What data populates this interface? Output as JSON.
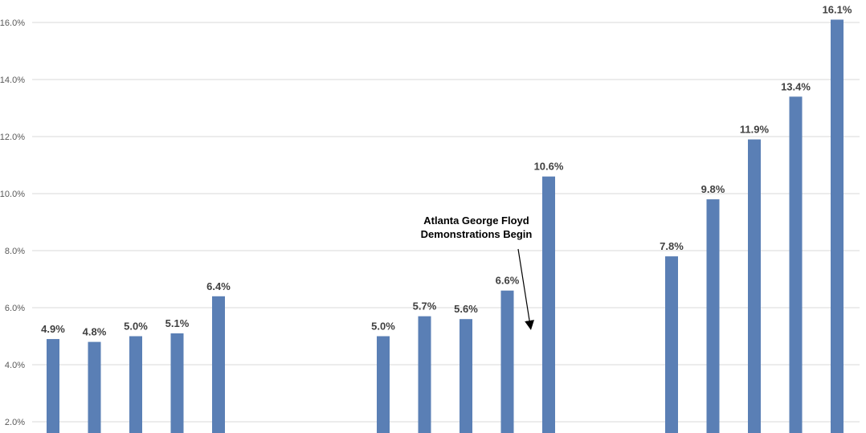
{
  "chart_data": {
    "type": "bar",
    "title": "",
    "xlabel": "",
    "ylabel": "",
    "ylim": [
      2.0,
      16.7
    ],
    "y_ticks": [
      "2.0%",
      "4.0%",
      "6.0%",
      "8.0%",
      "10.0%",
      "12.0%",
      "14.0%",
      "16.0%"
    ],
    "y_tick_values": [
      2,
      4,
      6,
      8,
      10,
      12,
      14,
      16
    ],
    "grid": true,
    "legend": "none",
    "bar_color": "#5a7fb5",
    "gridline_color": "#d9d9d9",
    "groups": [
      {
        "values": [
          4.9,
          4.8,
          5.0,
          5.1,
          6.4
        ],
        "labels": [
          "4.9%",
          "4.8%",
          "5.0%",
          "5.1%",
          "6.4%"
        ]
      },
      {
        "values": [
          5.0,
          5.7,
          5.6,
          6.6,
          10.6
        ],
        "labels": [
          "5.0%",
          "5.7%",
          "5.6%",
          "6.6%",
          "10.6%"
        ]
      },
      {
        "values": [
          7.8,
          9.8,
          11.9,
          13.4,
          16.1
        ],
        "labels": [
          "7.8%",
          "9.8%",
          "11.9%",
          "13.4%",
          "16.1%"
        ]
      }
    ],
    "annotations": [
      {
        "line1": "Atlanta George Floyd",
        "line2": "Demonstrations Begin"
      }
    ]
  }
}
